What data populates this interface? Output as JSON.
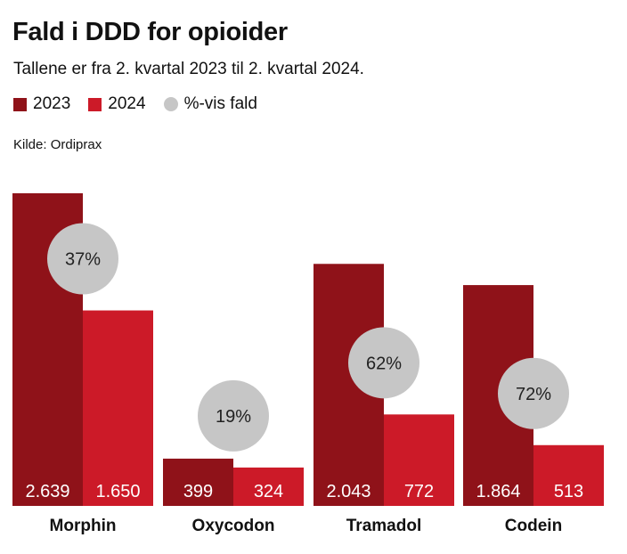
{
  "header": {
    "title": "Fald i DDD for opioider",
    "subtitle": "Tallene er fra 2. kvartal 2023 til 2. kvartal 2024.",
    "source": "Kilde: Ordiprax"
  },
  "legend": [
    {
      "label": "2023",
      "color": "#8f1219",
      "shape": "square"
    },
    {
      "label": "2024",
      "color": "#cc1a28",
      "shape": "square"
    },
    {
      "label": "%-vis fald",
      "color": "#c6c6c6",
      "shape": "circle"
    }
  ],
  "chart_data": {
    "type": "bar",
    "title": "Fald i DDD for opioider",
    "subtitle": "Tallene er fra 2. kvartal 2023 til 2. kvartal 2024.",
    "categories": [
      "Morphin",
      "Oxycodon",
      "Tramadol",
      "Codein"
    ],
    "series": [
      {
        "name": "2023",
        "color": "#8f1219",
        "values": [
          2639,
          399,
          2043,
          1864
        ],
        "labels": [
          "2.639",
          "399",
          "2.043",
          "1.864"
        ]
      },
      {
        "name": "2024",
        "color": "#cc1a28",
        "values": [
          1650,
          324,
          772,
          513
        ],
        "labels": [
          "1.650",
          "324",
          "772",
          "513"
        ]
      }
    ],
    "pct_decline": [
      "37%",
      "19%",
      "62%",
      "72%"
    ],
    "pct_color": "#c6c6c6",
    "ylim": [
      0,
      2639
    ],
    "grid": false,
    "legend_position": "top-left"
  }
}
